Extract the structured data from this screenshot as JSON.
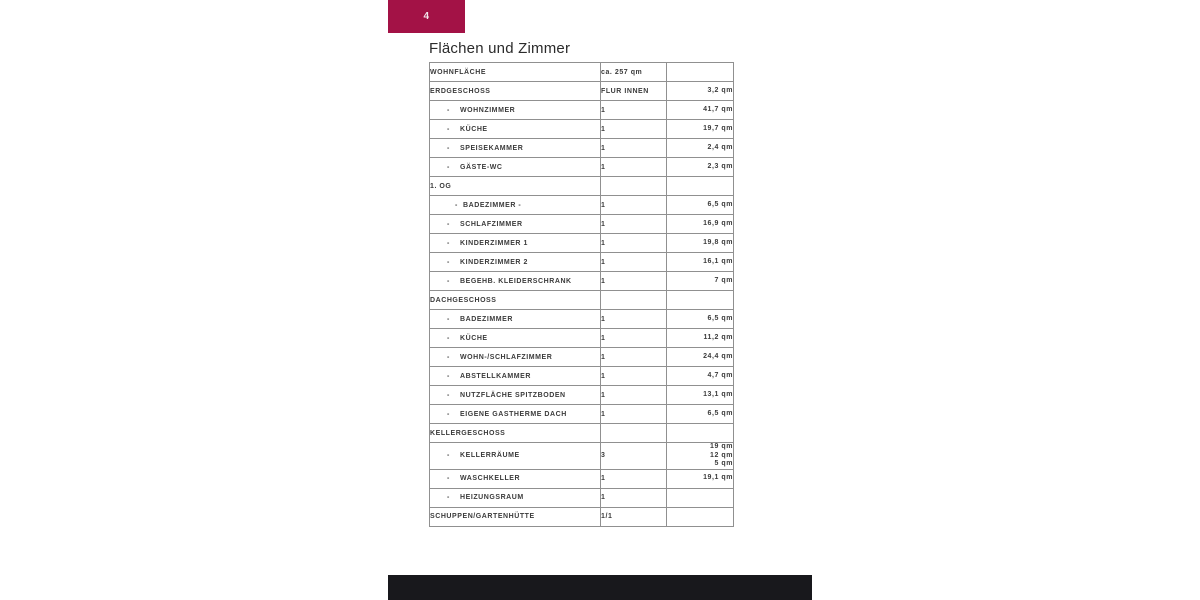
{
  "page": {
    "badge_number": "4",
    "title": "Flächen und Zimmer",
    "accent_color": "#a31246",
    "footer_color": "#18181c",
    "table_border_color": "#909090"
  },
  "table": {
    "rows": [
      {
        "indent": 0,
        "prefix": "",
        "label": "WOHNFLÄCHE",
        "rooms": "ca. 257 qm",
        "area": ""
      },
      {
        "indent": 0,
        "prefix": "",
        "label": "ERDGESCHOSS",
        "rooms": "FLUR INNEN",
        "area": "3,2 qm"
      },
      {
        "indent": 1,
        "prefix": "-",
        "label": "WOHNZIMMER",
        "rooms": "1",
        "area": "41,7 qm"
      },
      {
        "indent": 1,
        "prefix": "-",
        "label": "KÜCHE",
        "rooms": "1",
        "area": "19,7 qm"
      },
      {
        "indent": 1,
        "prefix": "-",
        "label": "SPEISEKAMMER",
        "rooms": "1",
        "area": "2,4 qm"
      },
      {
        "indent": 1,
        "prefix": "-",
        "label": "GÄSTE-WC",
        "rooms": "1",
        "area": "2,3 qm"
      },
      {
        "indent": 0,
        "prefix": "",
        "label": "1. OG",
        "rooms": "",
        "area": ""
      },
      {
        "indent": 2,
        "prefix": "-",
        "label": "BADEZIMMER -",
        "rooms": "1",
        "area": "6,5 qm"
      },
      {
        "indent": 1,
        "prefix": "-",
        "label": "SCHLAFZIMMER",
        "rooms": "1",
        "area": "16,9 qm"
      },
      {
        "indent": 1,
        "prefix": "-",
        "label": "KINDERZIMMER 1",
        "rooms": "1",
        "area": "19,8 qm"
      },
      {
        "indent": 1,
        "prefix": "-",
        "label": "KINDERZIMMER 2",
        "rooms": "1",
        "area": "16,1 qm"
      },
      {
        "indent": 1,
        "prefix": "-",
        "label": "BEGEHB. KLEIDERSCHRANK",
        "rooms": "1",
        "area": "7 qm"
      },
      {
        "indent": 0,
        "prefix": "",
        "label": "DACHGESCHOSS",
        "rooms": "",
        "area": ""
      },
      {
        "indent": 1,
        "prefix": "-",
        "label": "BADEZIMMER",
        "rooms": "1",
        "area": "6,5 qm"
      },
      {
        "indent": 1,
        "prefix": "-",
        "label": "KÜCHE",
        "rooms": "1",
        "area": "11,2 qm"
      },
      {
        "indent": 1,
        "prefix": "-",
        "label": "WOHN-/SCHLAFZIMMER",
        "rooms": "1",
        "area": "24,4 qm"
      },
      {
        "indent": 1,
        "prefix": "-",
        "label": "ABSTELLKAMMER",
        "rooms": "1",
        "area": "4,7 qm"
      },
      {
        "indent": 1,
        "prefix": "-",
        "label": "NUTZFLÄCHE SPITZBODEN",
        "rooms": "1",
        "area": "13,1 qm"
      },
      {
        "indent": 1,
        "prefix": "-",
        "label": "EIGENE GASTHERME DACH",
        "rooms": "1",
        "area": "6,5 qm"
      },
      {
        "indent": 0,
        "prefix": "",
        "label": "KELLERGESCHOSS",
        "rooms": "",
        "area": ""
      },
      {
        "indent": 1,
        "prefix": "-",
        "label": "KELLERRÄUME",
        "rooms": "3",
        "area": "19 qm\n12 qm\n5 qm"
      },
      {
        "indent": 1,
        "prefix": "-",
        "label": "WASCHKELLER",
        "rooms": "1",
        "area": "19,1 qm"
      },
      {
        "indent": 1,
        "prefix": "-",
        "label": "HEIZUNGSRAUM",
        "rooms": "1",
        "area": ""
      },
      {
        "indent": 0,
        "prefix": "",
        "label": "SCHUPPEN/GARTENHÜTTE",
        "rooms": "1/1",
        "area": ""
      }
    ]
  }
}
